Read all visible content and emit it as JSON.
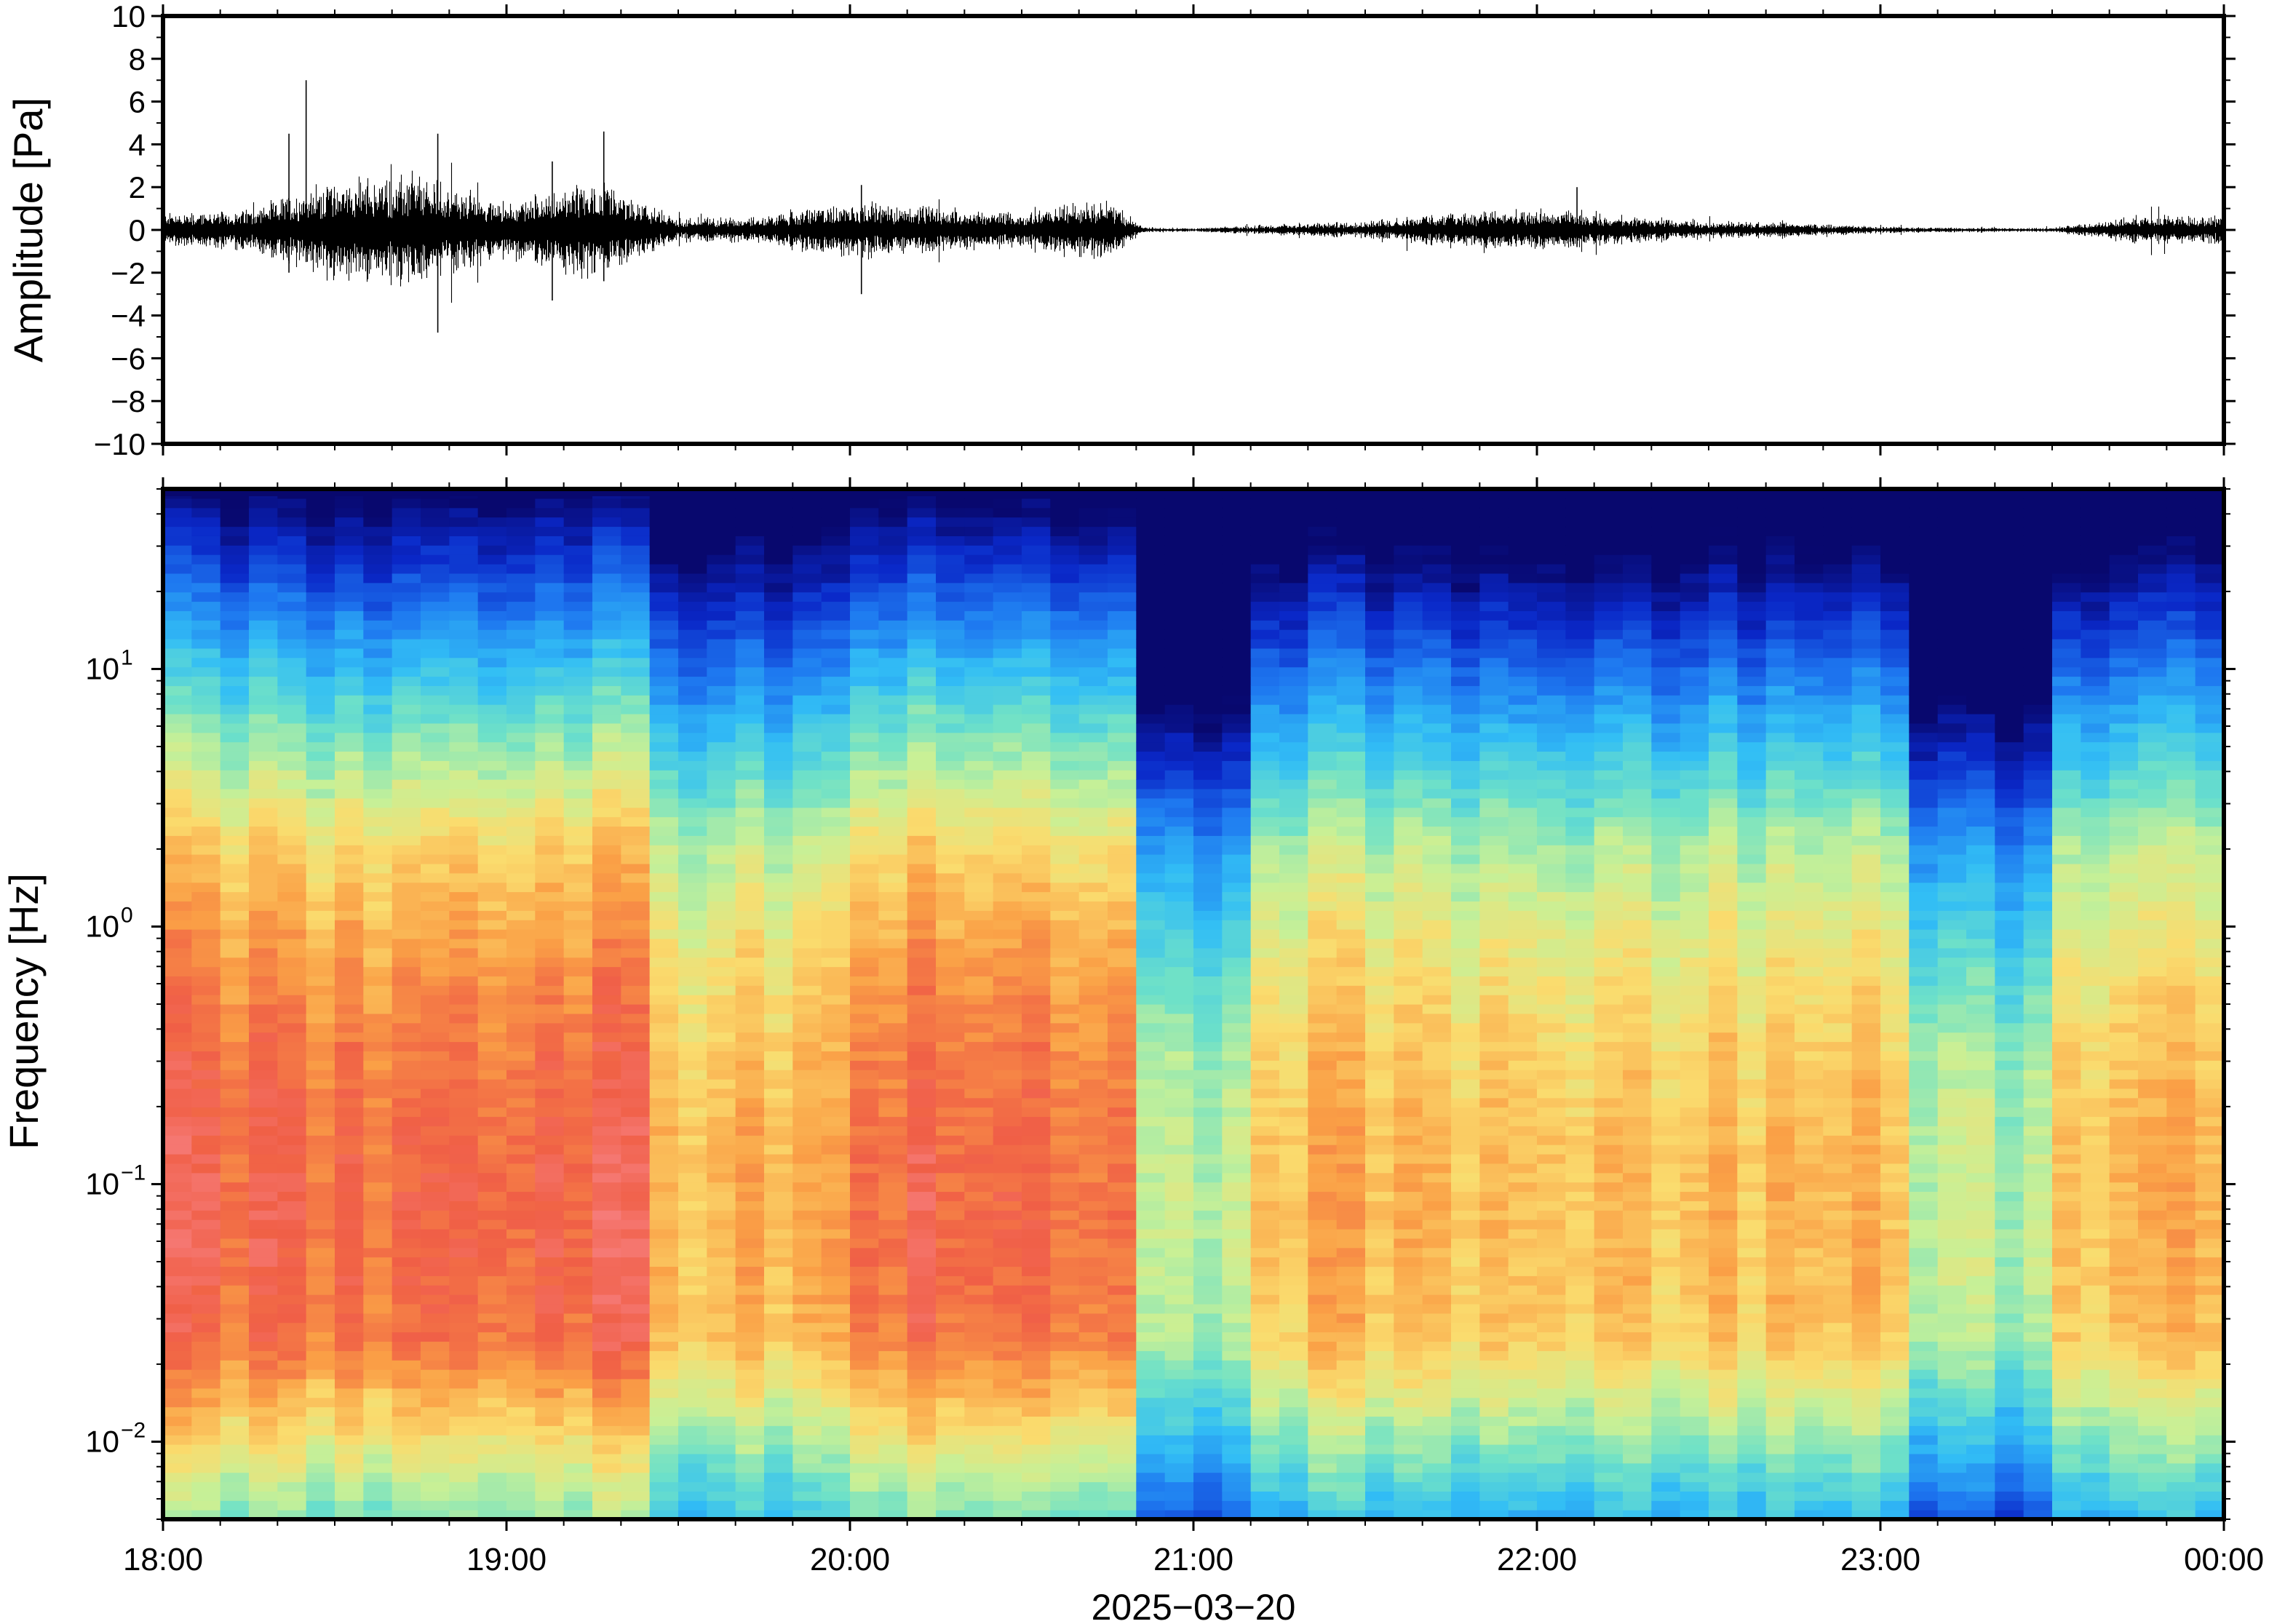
{
  "chart_data": [
    {
      "type": "line",
      "ylabel": "Amplitude [Pa]",
      "ylim": [
        -10,
        10
      ],
      "yticks": [
        10,
        8,
        6,
        4,
        2,
        0,
        -2,
        -4,
        -6,
        -8,
        -10
      ],
      "ytick_labels": [
        "10",
        "8",
        "6",
        "4",
        "2",
        "0",
        "−2",
        "−4",
        "−6",
        "−8",
        "−10"
      ],
      "xlim": [
        "18:00",
        "00:00"
      ],
      "grid": false,
      "series": [
        {
          "color": "#000000",
          "envelope_hours": [
            18.0,
            18.25,
            18.5,
            18.75,
            19.0,
            19.25,
            19.5,
            19.75,
            20.0,
            20.25,
            20.5,
            20.75,
            20.85,
            21.0,
            21.25,
            21.5,
            21.75,
            22.0,
            22.25,
            22.5,
            22.75,
            23.0,
            23.25,
            23.5,
            23.75,
            24.0
          ],
          "envelope_pa": [
            0.6,
            0.7,
            1.8,
            1.8,
            1.0,
            1.7,
            0.4,
            0.5,
            1.0,
            0.8,
            0.6,
            1.1,
            0.1,
            0.06,
            0.2,
            0.3,
            0.6,
            0.7,
            0.5,
            0.3,
            0.25,
            0.12,
            0.08,
            0.07,
            0.5,
            0.5
          ],
          "spikes": [
            {
              "t": "18:25",
              "min": -1.5,
              "max": 7.0
            },
            {
              "t": "18:22",
              "min": -2.0,
              "max": 4.5
            },
            {
              "t": "18:48",
              "min": -4.8,
              "max": 4.5
            },
            {
              "t": "19:08",
              "min": -3.3,
              "max": 3.2
            },
            {
              "t": "19:17",
              "min": -2.4,
              "max": 4.6
            },
            {
              "t": "20:02",
              "min": -3.0,
              "max": 2.1
            },
            {
              "t": "22:07",
              "min": -0.8,
              "max": 2.0
            }
          ]
        }
      ]
    },
    {
      "type": "heatmap",
      "ylabel": "Frequency [Hz]",
      "yscale": "log",
      "ylim": [
        0.005,
        50
      ],
      "yticks": [
        0.01,
        0.1,
        1,
        10
      ],
      "ytick_labels": [
        {
          "base": "10",
          "exp": "−2"
        },
        {
          "base": "10",
          "exp": "−1"
        },
        {
          "base": "10",
          "exp": "0"
        },
        {
          "base": "10",
          "exp": "1"
        }
      ],
      "xlabel": "2025−03−20",
      "xticks": [
        "18:00",
        "19:00",
        "20:00",
        "21:00",
        "22:00",
        "23:00",
        "00:00"
      ],
      "colormap": "jet",
      "time_bins_per_hour": 12,
      "high_energy_intervals": [
        [
          "18:00",
          "19:23"
        ],
        [
          "20:00",
          "20:50"
        ]
      ],
      "quiet_intervals": [
        [
          "20:52",
          "21:08"
        ],
        [
          "23:05",
          "23:28"
        ]
      ],
      "grid": false
    }
  ]
}
